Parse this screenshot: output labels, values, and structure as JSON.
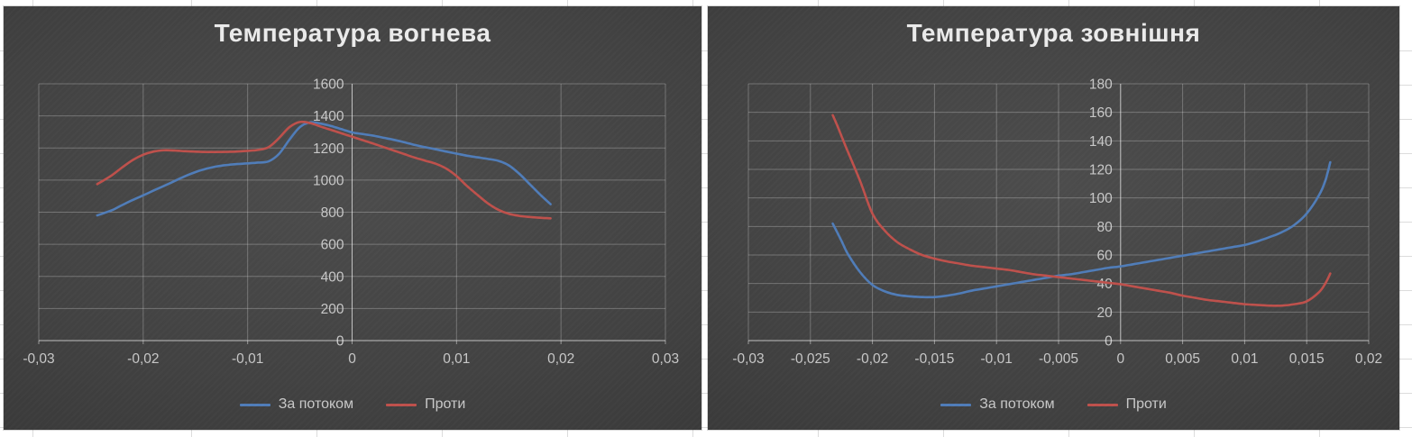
{
  "sheet": {
    "background_color": "#ffffff",
    "gridline_color": "#dcdcdc"
  },
  "colors": {
    "chart_background_center": "#4c4c4c",
    "chart_background_edge": "#2e2e2e",
    "title_text": "#eaeaea",
    "axis_text": "#c7c7c7",
    "series_blue": "#4f7cb8",
    "series_red": "#be504b"
  },
  "chart_data": [
    {
      "type": "line",
      "title": "Температура вогнева",
      "xlabel": "",
      "ylabel": "",
      "xlim": [
        -0.03,
        0.03
      ],
      "ylim": [
        0,
        1600
      ],
      "grid": true,
      "legend_position": "bottom",
      "x_ticks": {
        "values": [
          -0.03,
          -0.02,
          -0.01,
          0,
          0.01,
          0.02,
          0.03
        ],
        "labels": [
          "-0,03",
          "-0,02",
          "-0,01",
          "0",
          "0,01",
          "0,02",
          "0,03"
        ]
      },
      "y_ticks": {
        "values": [
          0,
          200,
          400,
          600,
          800,
          1000,
          1200,
          1400,
          1600
        ],
        "labels": [
          "0",
          "200",
          "400",
          "600",
          "800",
          "1000",
          "1200",
          "1400",
          "1600"
        ]
      },
      "series": [
        {
          "name": "За потоком",
          "color": "#4f7cb8",
          "points": [
            [
              -0.0244,
              780
            ],
            [
              -0.023,
              812
            ],
            [
              -0.022,
              845
            ],
            [
              -0.021,
              876
            ],
            [
              -0.02,
              905
            ],
            [
              -0.019,
              935
            ],
            [
              -0.018,
              964
            ],
            [
              -0.017,
              994
            ],
            [
              -0.016,
              1024
            ],
            [
              -0.015,
              1050
            ],
            [
              -0.014,
              1070
            ],
            [
              -0.013,
              1085
            ],
            [
              -0.012,
              1094
            ],
            [
              -0.011,
              1100
            ],
            [
              -0.01,
              1104
            ],
            [
              -0.009,
              1109
            ],
            [
              -0.008,
              1117
            ],
            [
              -0.007,
              1163
            ],
            [
              -0.006,
              1252
            ],
            [
              -0.005,
              1330
            ],
            [
              -0.004,
              1360
            ],
            [
              -0.003,
              1352
            ],
            [
              -0.002,
              1337
            ],
            [
              -0.001,
              1317
            ],
            [
              0,
              1297
            ],
            [
              0.001,
              1287
            ],
            [
              0.002,
              1277
            ],
            [
              0.003,
              1264
            ],
            [
              0.004,
              1251
            ],
            [
              0.005,
              1236
            ],
            [
              0.006,
              1219
            ],
            [
              0.007,
              1205
            ],
            [
              0.008,
              1192
            ],
            [
              0.009,
              1178
            ],
            [
              0.01,
              1165
            ],
            [
              0.011,
              1152
            ],
            [
              0.012,
              1142
            ],
            [
              0.013,
              1132
            ],
            [
              0.014,
              1120
            ],
            [
              0.015,
              1092
            ],
            [
              0.016,
              1040
            ],
            [
              0.017,
              975
            ],
            [
              0.018,
              910
            ],
            [
              0.019,
              850
            ]
          ]
        },
        {
          "name": "Проти",
          "color": "#be504b",
          "points": [
            [
              -0.0244,
              975
            ],
            [
              -0.023,
              1030
            ],
            [
              -0.022,
              1080
            ],
            [
              -0.021,
              1125
            ],
            [
              -0.02,
              1158
            ],
            [
              -0.019,
              1178
            ],
            [
              -0.018,
              1186
            ],
            [
              -0.017,
              1184
            ],
            [
              -0.016,
              1180
            ],
            [
              -0.015,
              1177
            ],
            [
              -0.014,
              1175
            ],
            [
              -0.013,
              1175
            ],
            [
              -0.012,
              1176
            ],
            [
              -0.011,
              1178
            ],
            [
              -0.01,
              1182
            ],
            [
              -0.009,
              1188
            ],
            [
              -0.008,
              1205
            ],
            [
              -0.007,
              1262
            ],
            [
              -0.006,
              1330
            ],
            [
              -0.005,
              1362
            ],
            [
              -0.004,
              1355
            ],
            [
              -0.003,
              1333
            ],
            [
              -0.002,
              1312
            ],
            [
              -0.001,
              1291
            ],
            [
              0,
              1270
            ],
            [
              0.001,
              1249
            ],
            [
              0.002,
              1228
            ],
            [
              0.003,
              1206
            ],
            [
              0.004,
              1184
            ],
            [
              0.005,
              1162
            ],
            [
              0.006,
              1140
            ],
            [
              0.007,
              1121
            ],
            [
              0.008,
              1102
            ],
            [
              0.009,
              1072
            ],
            [
              0.01,
              1025
            ],
            [
              0.011,
              963
            ],
            [
              0.012,
              908
            ],
            [
              0.013,
              855
            ],
            [
              0.014,
              815
            ],
            [
              0.015,
              790
            ],
            [
              0.016,
              777
            ],
            [
              0.017,
              770
            ],
            [
              0.018,
              765
            ],
            [
              0.019,
              762
            ]
          ]
        }
      ]
    },
    {
      "type": "line",
      "title": "Температура зовнішня",
      "xlabel": "",
      "ylabel": "",
      "xlim": [
        -0.03,
        0.02
      ],
      "ylim": [
        0,
        180
      ],
      "grid": true,
      "legend_position": "bottom",
      "x_ticks": {
        "values": [
          -0.03,
          -0.025,
          -0.02,
          -0.015,
          -0.01,
          -0.005,
          0,
          0.005,
          0.01,
          0.015,
          0.02
        ],
        "labels": [
          "-0,03",
          "-0,025",
          "-0,02",
          "-0,015",
          "-0,01",
          "-0,005",
          "0",
          "0,005",
          "0,01",
          "0,015",
          "0,02"
        ]
      },
      "y_ticks": {
        "values": [
          0,
          20,
          40,
          60,
          80,
          100,
          120,
          140,
          160,
          180
        ],
        "labels": [
          "0",
          "20",
          "40",
          "60",
          "80",
          "100",
          "120",
          "140",
          "160",
          "180"
        ]
      },
      "series": [
        {
          "name": "За потоком",
          "color": "#4f7cb8",
          "points": [
            [
              -0.0232,
              82
            ],
            [
              -0.0225,
              70
            ],
            [
              -0.022,
              61
            ],
            [
              -0.021,
              48
            ],
            [
              -0.02,
              39
            ],
            [
              -0.019,
              34.5
            ],
            [
              -0.018,
              32
            ],
            [
              -0.017,
              31
            ],
            [
              -0.016,
              30.5
            ],
            [
              -0.015,
              30.5
            ],
            [
              -0.014,
              31.5
            ],
            [
              -0.013,
              33
            ],
            [
              -0.012,
              35
            ],
            [
              -0.011,
              36.5
            ],
            [
              -0.01,
              38
            ],
            [
              -0.009,
              39.5
            ],
            [
              -0.008,
              41
            ],
            [
              -0.007,
              42.5
            ],
            [
              -0.006,
              44
            ],
            [
              -0.005,
              45.5
            ],
            [
              -0.004,
              46.5
            ],
            [
              -0.003,
              48
            ],
            [
              -0.002,
              49.5
            ],
            [
              -0.001,
              51
            ],
            [
              0,
              52
            ],
            [
              0.001,
              53.5
            ],
            [
              0.002,
              55
            ],
            [
              0.003,
              56.5
            ],
            [
              0.004,
              58
            ],
            [
              0.005,
              59.5
            ],
            [
              0.006,
              61
            ],
            [
              0.007,
              62.5
            ],
            [
              0.008,
              64
            ],
            [
              0.009,
              65.5
            ],
            [
              0.01,
              67
            ],
            [
              0.011,
              69.5
            ],
            [
              0.012,
              72.5
            ],
            [
              0.013,
              76
            ],
            [
              0.014,
              81
            ],
            [
              0.015,
              89
            ],
            [
              0.016,
              102
            ],
            [
              0.0165,
              112
            ],
            [
              0.0169,
              125
            ]
          ]
        },
        {
          "name": "Проти",
          "color": "#be504b",
          "points": [
            [
              -0.0232,
              158
            ],
            [
              -0.0228,
              150
            ],
            [
              -0.0222,
              137
            ],
            [
              -0.021,
              112
            ],
            [
              -0.02,
              89
            ],
            [
              -0.019,
              77
            ],
            [
              -0.018,
              69
            ],
            [
              -0.017,
              64
            ],
            [
              -0.016,
              60
            ],
            [
              -0.015,
              57.5
            ],
            [
              -0.014,
              55.5
            ],
            [
              -0.013,
              54
            ],
            [
              -0.012,
              52.5
            ],
            [
              -0.011,
              51.5
            ],
            [
              -0.01,
              50.5
            ],
            [
              -0.009,
              49.5
            ],
            [
              -0.008,
              48
            ],
            [
              -0.007,
              46.5
            ],
            [
              -0.006,
              45.5
            ],
            [
              -0.005,
              44.5
            ],
            [
              -0.004,
              43.5
            ],
            [
              -0.003,
              42.5
            ],
            [
              -0.002,
              41.5
            ],
            [
              -0.001,
              40.5
            ],
            [
              0,
              39.5
            ],
            [
              0.001,
              38
            ],
            [
              0.002,
              36.5
            ],
            [
              0.003,
              35
            ],
            [
              0.004,
              33.5
            ],
            [
              0.005,
              31.5
            ],
            [
              0.006,
              30
            ],
            [
              0.007,
              28.5
            ],
            [
              0.008,
              27.5
            ],
            [
              0.009,
              26.5
            ],
            [
              0.01,
              25.5
            ],
            [
              0.011,
              25
            ],
            [
              0.012,
              24.5
            ],
            [
              0.013,
              24.5
            ],
            [
              0.014,
              25.5
            ],
            [
              0.015,
              27.5
            ],
            [
              0.016,
              34
            ],
            [
              0.0165,
              40
            ],
            [
              0.0169,
              47
            ]
          ]
        }
      ]
    }
  ]
}
